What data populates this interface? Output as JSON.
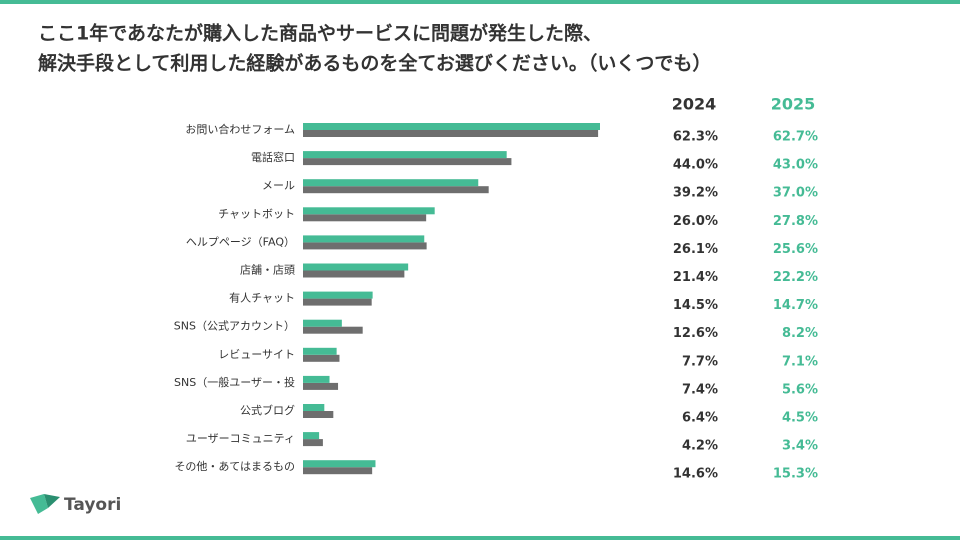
{
  "title": [
    "ここ1年であなたが購入した商品やサービスに問題が発生した際、",
    "解決手段として利用した経験があるものを全てお選びください。（いくつでも）"
  ],
  "logo": "Tayori",
  "chart_data": {
    "type": "hbar",
    "categories": [
      "お問い合わせフォーム",
      "電話窓口",
      "メール",
      "チャットボット",
      "ヘルプページ（FAQ）",
      "店舗・店頭",
      "有人チャット",
      "SNS（公式アカウント）",
      "レビューサイト",
      "SNS（一般ユーザー・投",
      "公式ブログ",
      "ユーザーコミュニティ",
      "その他・あてはまるもの"
    ],
    "series": [
      {
        "name": "2024",
        "color": "#6e6e6e",
        "values": [
          62.3,
          44.0,
          39.2,
          26.0,
          26.1,
          21.4,
          14.5,
          12.6,
          7.7,
          7.4,
          6.4,
          4.2,
          14.6
        ],
        "value_labels": [
          "62.3%",
          "44.0%",
          "39.2%",
          "26.0%",
          "26.1%",
          "21.4%",
          "14.5%",
          "12.6%",
          "7.7%",
          "7.4%",
          "6.4%",
          "4.2%",
          "14.6%"
        ]
      },
      {
        "name": "2025",
        "color": "#45bb95",
        "values": [
          62.7,
          43.0,
          37.0,
          27.8,
          25.6,
          22.2,
          14.7,
          8.2,
          7.1,
          5.6,
          4.5,
          3.4,
          15.3
        ],
        "value_labels": [
          "62.7%",
          "43.0%",
          "37.0%",
          "27.8%",
          "25.6%",
          "22.2%",
          "14.7%",
          "8.2%",
          "7.1%",
          "5.6%",
          "4.5%",
          "3.4%",
          "15.3%"
        ]
      }
    ]
  }
}
